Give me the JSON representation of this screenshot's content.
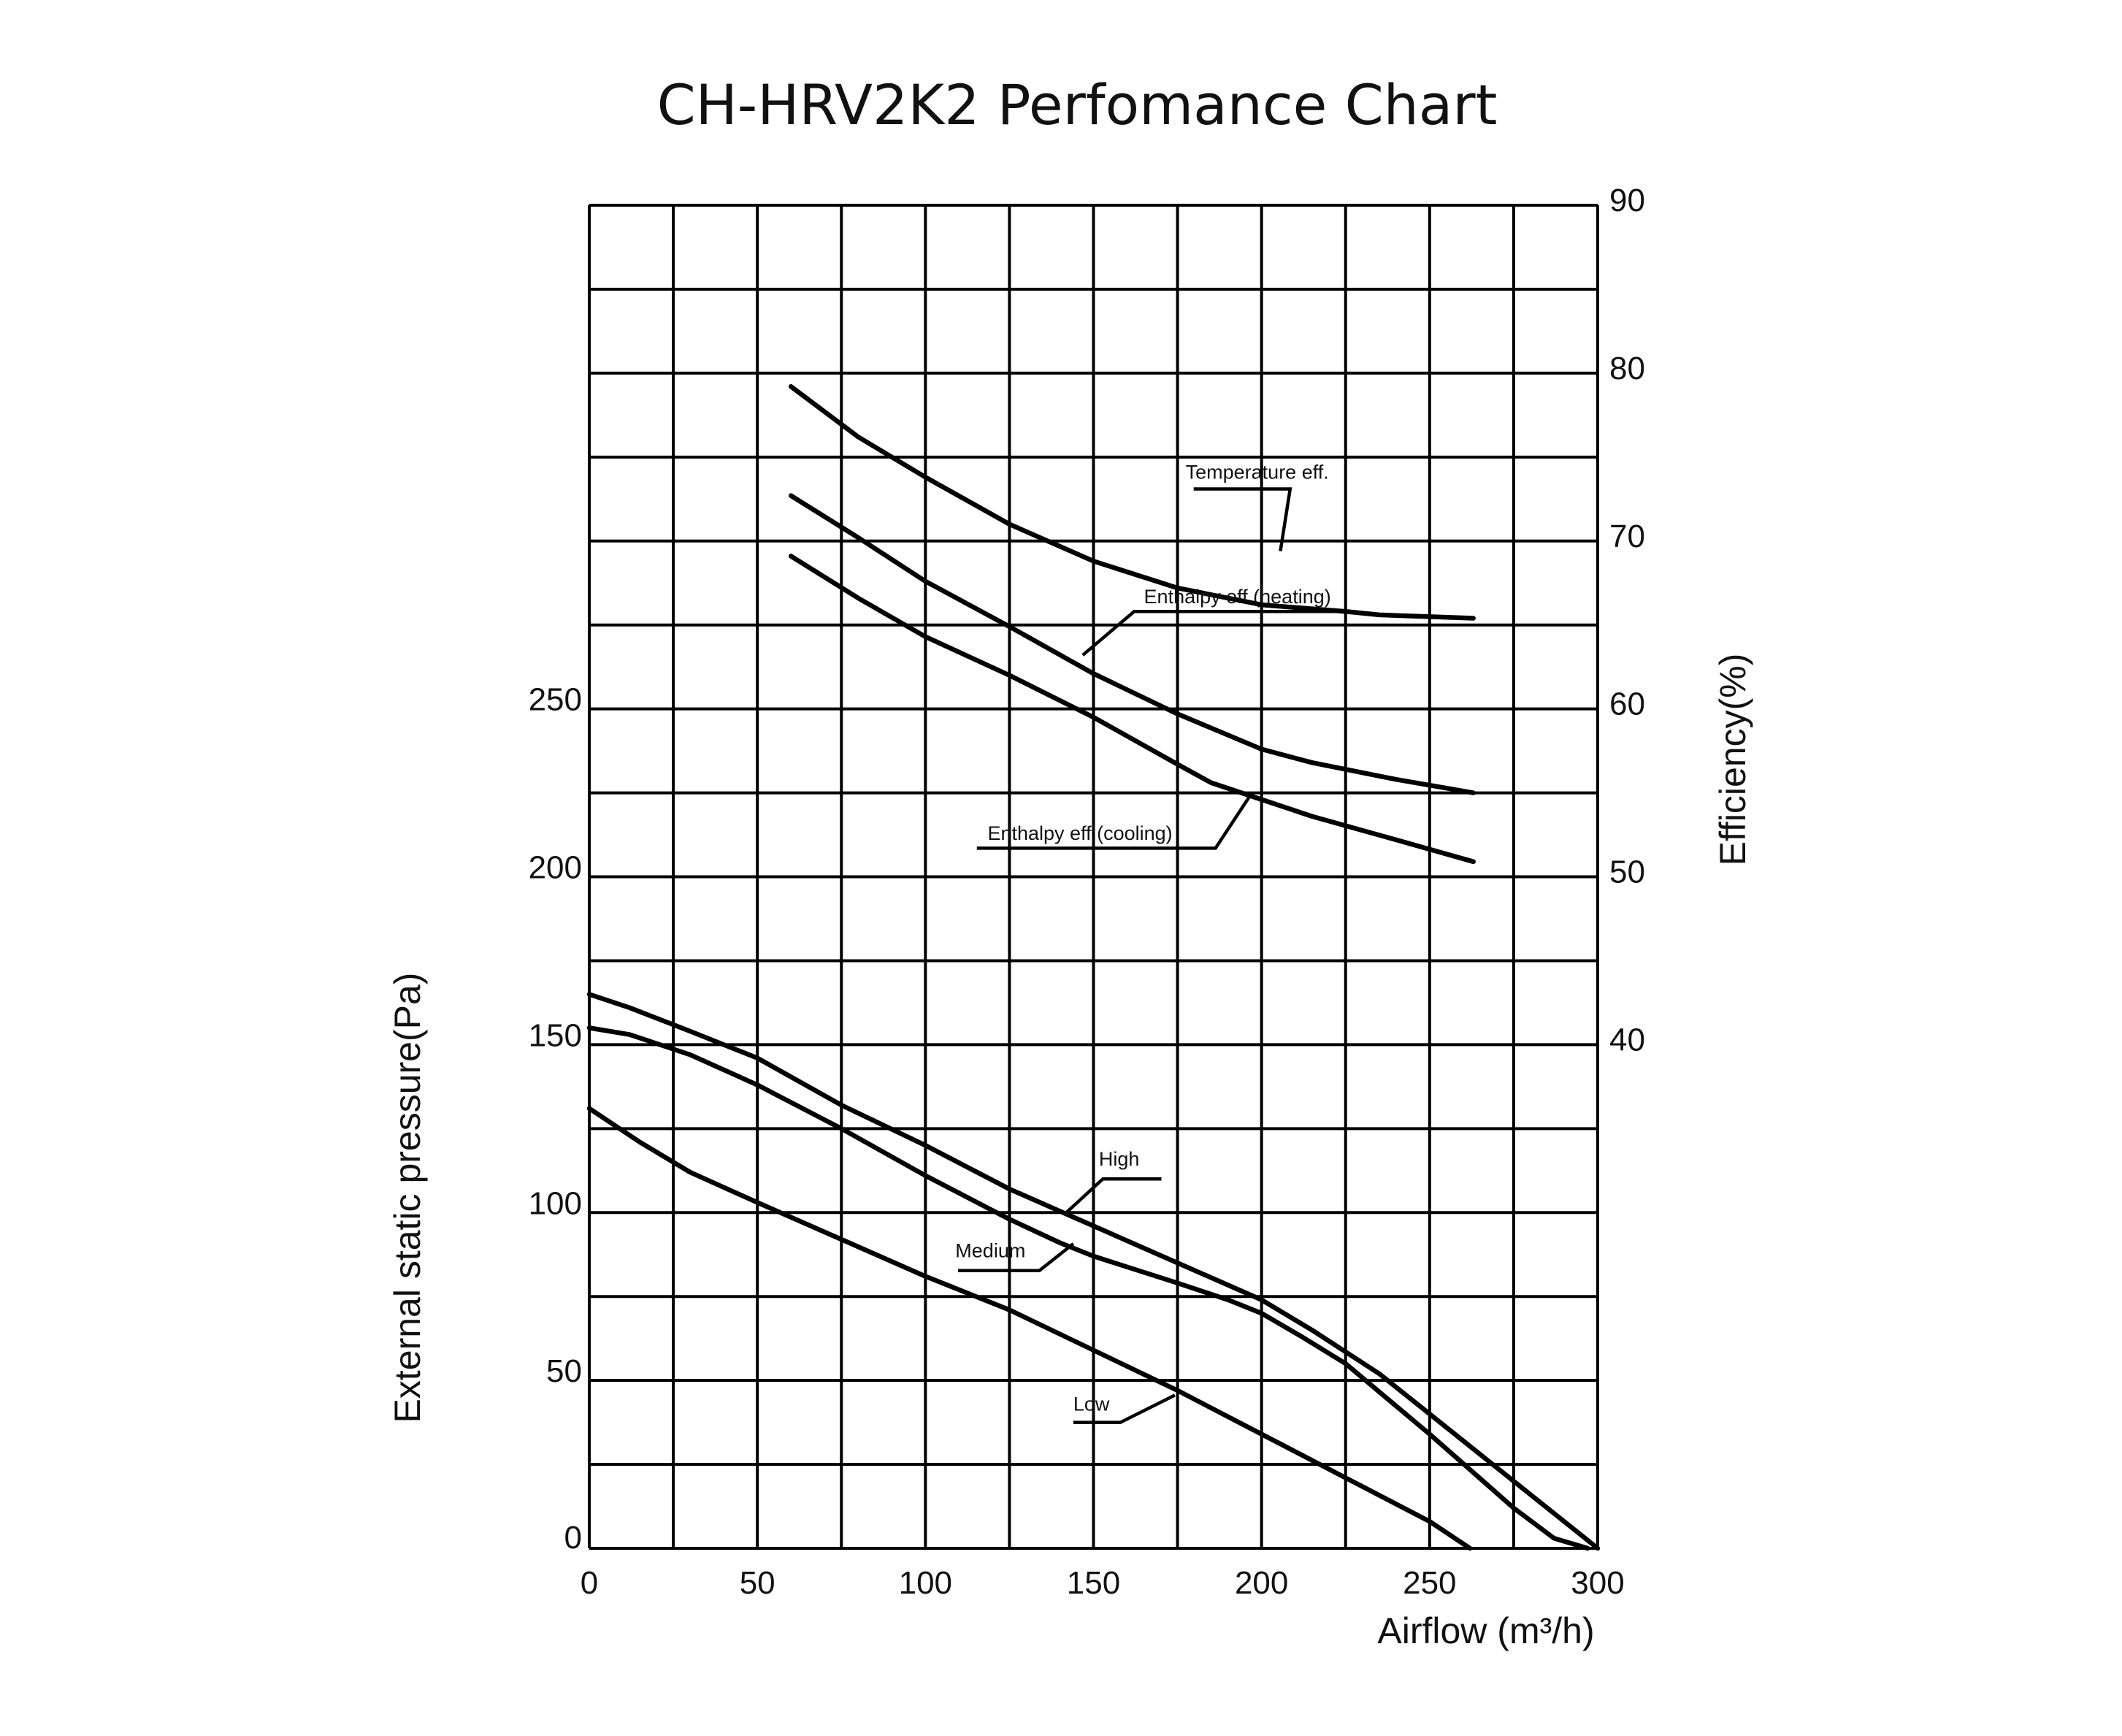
{
  "chart_data": {
    "type": "line",
    "title": "CH-HRV2K2  Perfomance Chart",
    "xlabel": "Airflow (m³/h)",
    "ylabel_left": "External static pressure(Pa)",
    "ylabel_right": "Efficiency(%)",
    "xlim": [
      0,
      300
    ],
    "ylim_left": [
      0,
      400
    ],
    "ylim_right": [
      10,
      90
    ],
    "grid": true,
    "x_ticks": [
      "0",
      "50",
      "100",
      "150",
      "200",
      "250",
      "300"
    ],
    "y_left_ticks": [
      "0",
      "50",
      "100",
      "150",
      "200",
      "250"
    ],
    "y_right_ticks": [
      "40",
      "50",
      "60",
      "70",
      "80",
      "90"
    ],
    "pressure_series": [
      {
        "name": "High",
        "points": [
          [
            0,
            165
          ],
          [
            12,
            161
          ],
          [
            30,
            154
          ],
          [
            50,
            146
          ],
          [
            75,
            132
          ],
          [
            100,
            120
          ],
          [
            125,
            107
          ],
          [
            150,
            96
          ],
          [
            175,
            85
          ],
          [
            200,
            74
          ],
          [
            215,
            65
          ],
          [
            235,
            52
          ],
          [
            250,
            40
          ],
          [
            275,
            20
          ],
          [
            300,
            0
          ]
        ]
      },
      {
        "name": "Medium",
        "points": [
          [
            0,
            155
          ],
          [
            12,
            153
          ],
          [
            30,
            147
          ],
          [
            50,
            138
          ],
          [
            75,
            125
          ],
          [
            100,
            111
          ],
          [
            125,
            98
          ],
          [
            140,
            91
          ],
          [
            150,
            87
          ],
          [
            175,
            79
          ],
          [
            190,
            74
          ],
          [
            200,
            70
          ],
          [
            212,
            63
          ],
          [
            225,
            55
          ],
          [
            250,
            34
          ],
          [
            275,
            12
          ],
          [
            287,
            3
          ],
          [
            297,
            0
          ]
        ]
      },
      {
        "name": "Low",
        "points": [
          [
            0,
            131
          ],
          [
            15,
            121
          ],
          [
            30,
            112
          ],
          [
            50,
            103
          ],
          [
            75,
            92
          ],
          [
            100,
            81
          ],
          [
            125,
            71
          ],
          [
            150,
            59
          ],
          [
            175,
            47
          ],
          [
            200,
            34
          ],
          [
            225,
            21
          ],
          [
            250,
            8
          ],
          [
            262,
            0
          ]
        ]
      }
    ],
    "efficiency_series": [
      {
        "name": "Temperature eff.",
        "points": [
          [
            60,
            79.2
          ],
          [
            80,
            76.2
          ],
          [
            100,
            73.8
          ],
          [
            125,
            71
          ],
          [
            150,
            68.8
          ],
          [
            175,
            67.2
          ],
          [
            200,
            66.2
          ],
          [
            225,
            65.8
          ],
          [
            235,
            65.6
          ],
          [
            263,
            65.4
          ]
        ]
      },
      {
        "name": "Enthalpy eff.(heating)",
        "points": [
          [
            60,
            72.7
          ],
          [
            80,
            70.2
          ],
          [
            100,
            67.6
          ],
          [
            125,
            64.9
          ],
          [
            150,
            62.1
          ],
          [
            175,
            59.7
          ],
          [
            200,
            57.6
          ],
          [
            215,
            56.8
          ],
          [
            240,
            55.8
          ],
          [
            263,
            55
          ]
        ]
      },
      {
        "name": "Enthalpy eff.(cooling)",
        "points": [
          [
            60,
            69.1
          ],
          [
            80,
            66.6
          ],
          [
            100,
            64.3
          ],
          [
            125,
            62
          ],
          [
            150,
            59.5
          ],
          [
            175,
            56.7
          ],
          [
            185,
            55.6
          ],
          [
            200,
            54.6
          ],
          [
            215,
            53.6
          ],
          [
            240,
            52.2
          ],
          [
            263,
            50.9
          ]
        ]
      }
    ],
    "annotations": {
      "high": "High",
      "medium": "Medium",
      "low": "Low",
      "temperature": "Temperature eff.",
      "heating": "Enthalpy eff.(heating)",
      "cooling": "Enthalpy eff.(cooling)"
    }
  }
}
